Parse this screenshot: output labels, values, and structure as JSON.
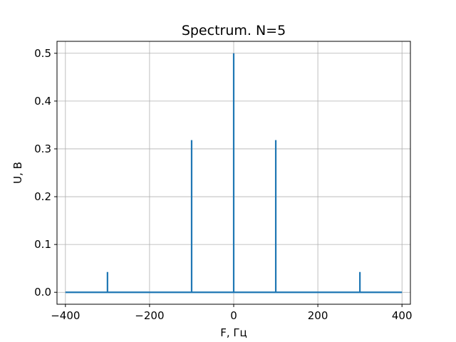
{
  "chart_data": {
    "type": "line",
    "title": "Spectrum. N=5",
    "xlabel": "F, Гц",
    "ylabel": "U, В",
    "xlim": [
      -420,
      420
    ],
    "ylim": [
      -0.025,
      0.525
    ],
    "xticks": [
      -400,
      -200,
      0,
      200,
      400
    ],
    "xtick_labels": [
      "−400",
      "−200",
      "0",
      "200",
      "400"
    ],
    "yticks": [
      0.0,
      0.1,
      0.2,
      0.3,
      0.4,
      0.5
    ],
    "ytick_labels": [
      "0.0",
      "0.1",
      "0.2",
      "0.3",
      "0.4",
      "0.5"
    ],
    "grid": true,
    "series": [
      {
        "color": "#1f77b4",
        "x": [
          -400,
          -300,
          -300,
          -300,
          -100,
          -100,
          -100,
          0,
          0,
          0,
          100,
          100,
          100,
          300,
          300,
          300,
          400
        ],
        "y": [
          0,
          0,
          0.0424,
          0,
          0,
          0.3183,
          0,
          0,
          0.5,
          0,
          0,
          0.3183,
          0,
          0,
          0.0424,
          0,
          0
        ]
      }
    ]
  }
}
